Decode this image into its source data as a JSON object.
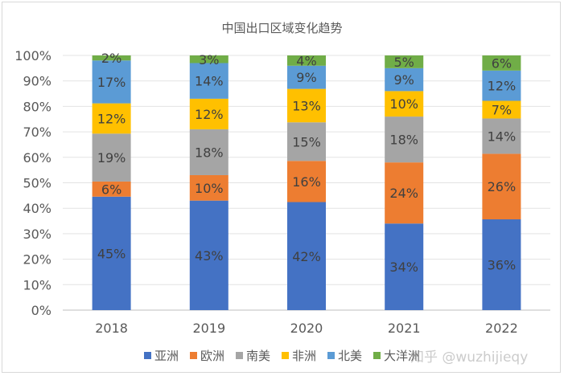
{
  "chart_data": {
    "type": "bar",
    "stacked": "percent",
    "title": "中国出口区域变化趋势",
    "categories": [
      "2018",
      "2019",
      "2020",
      "2021",
      "2022"
    ],
    "series": [
      {
        "name": "亚洲",
        "color": "#4472C4",
        "values": [
          45,
          43,
          42,
          34,
          36
        ]
      },
      {
        "name": "欧洲",
        "color": "#ED7D31",
        "values": [
          6,
          10,
          16,
          24,
          26
        ]
      },
      {
        "name": "南美",
        "color": "#A5A5A5",
        "values": [
          19,
          18,
          15,
          18,
          14
        ]
      },
      {
        "name": "非洲",
        "color": "#FFC000",
        "values": [
          12,
          12,
          13,
          10,
          7
        ]
      },
      {
        "name": "北美",
        "color": "#5B9BD5",
        "values": [
          17,
          14,
          9,
          9,
          12
        ]
      },
      {
        "name": "大洋洲",
        "color": "#70AD47",
        "values": [
          2,
          3,
          4,
          5,
          6
        ]
      }
    ],
    "yticks": [
      "0%",
      "10%",
      "20%",
      "30%",
      "40%",
      "50%",
      "60%",
      "70%",
      "80%",
      "90%",
      "100%"
    ],
    "ylim": [
      0,
      100
    ],
    "grid": true,
    "legend": "bottom",
    "data_labels": true
  },
  "watermark": "知乎 @wuzhijieqy"
}
